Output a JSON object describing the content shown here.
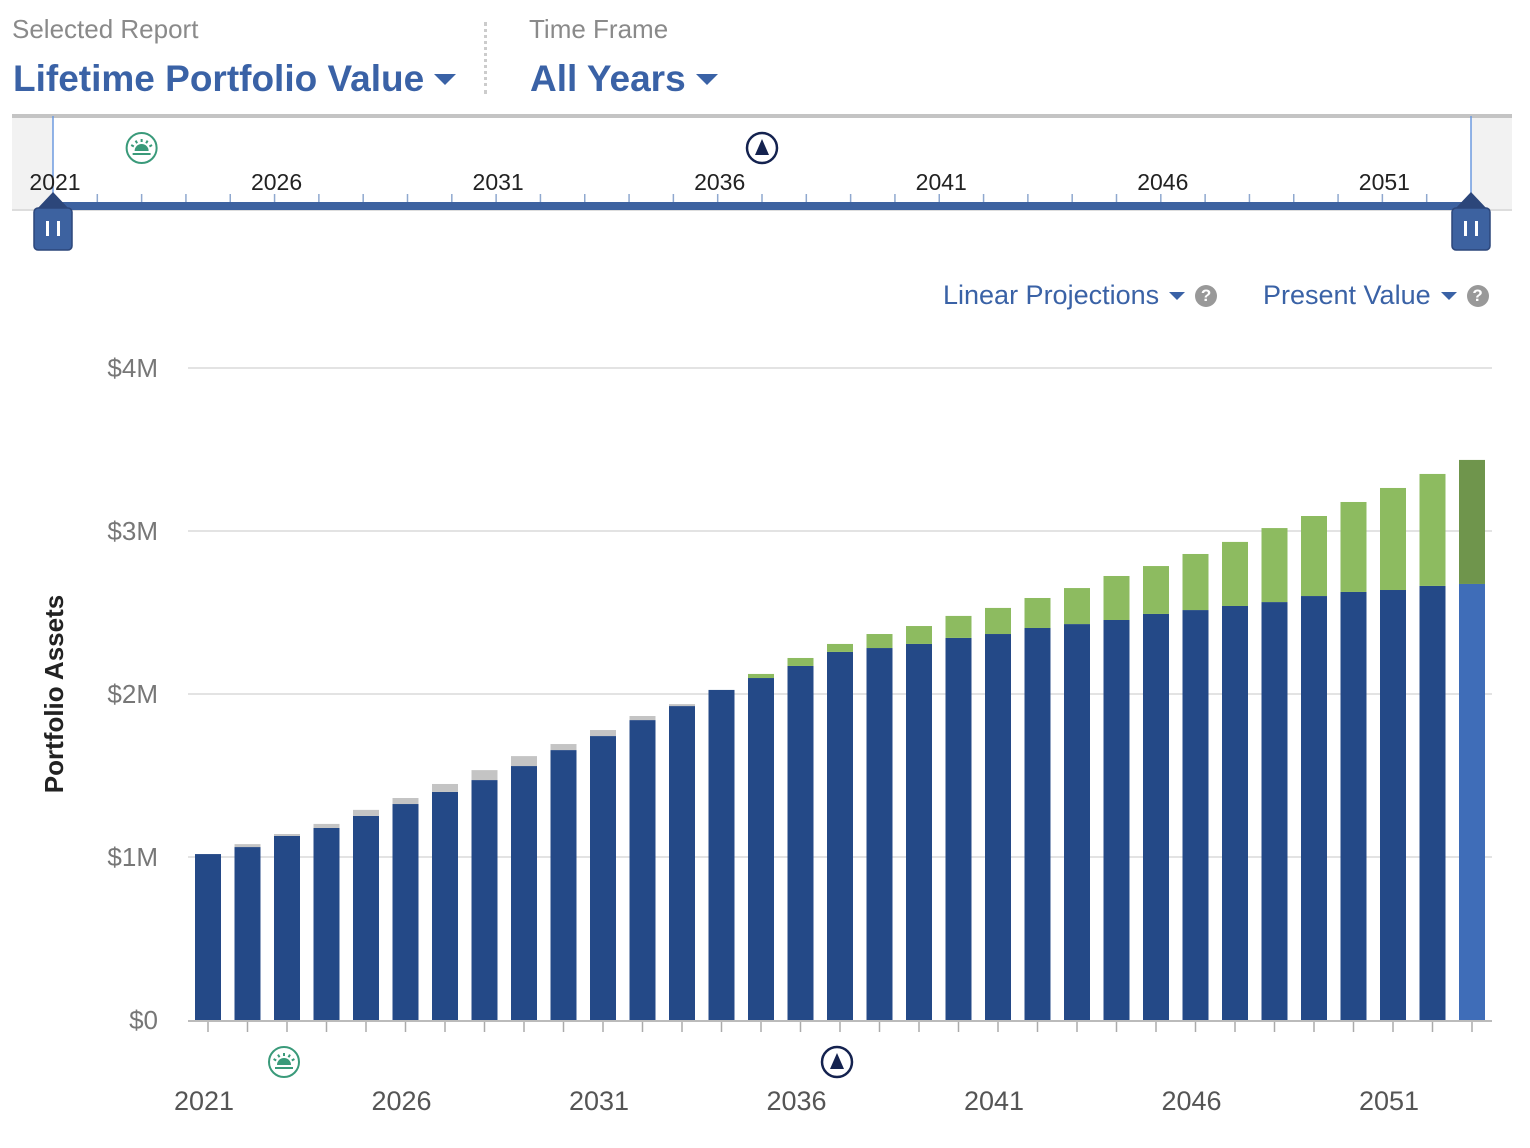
{
  "header": {
    "report_label": "Selected Report",
    "report_value": "Lifetime Portfolio Value",
    "timeframe_label": "Time Frame",
    "timeframe_value": "All Years"
  },
  "slider": {
    "tick_labels": [
      "2021",
      "2026",
      "2031",
      "2036",
      "2041",
      "2046",
      "2051"
    ],
    "range_start": 2021,
    "range_end": 2053,
    "markers": [
      {
        "icon": "sunrise-icon",
        "year": 2023
      },
      {
        "icon": "triangle-milestone-icon",
        "year": 2037
      }
    ]
  },
  "options": {
    "projection": "Linear Projections",
    "value_mode": "Present Value",
    "help_glyph": "?"
  },
  "colors": {
    "blue": "#244987",
    "gray": "#c4c4c4",
    "green": "#8dbb60",
    "highlight_blue": "#3f6db8",
    "highlight_green": "#6f954c",
    "accent": "#3a62a6",
    "sunrise": "#3a9a7a",
    "milestone": "#14224f"
  },
  "chart_data": {
    "type": "bar",
    "stacked": true,
    "ylabel": "Portfolio Assets",
    "xlabel": "",
    "ylim": [
      0,
      4000000
    ],
    "y_ticks": [
      "$0",
      "$1M",
      "$2M",
      "$3M",
      "$4M"
    ],
    "x_tick_labels": [
      "2021",
      "2026",
      "2031",
      "2036",
      "2041",
      "2046",
      "2051"
    ],
    "grid": true,
    "highlighted_category": "2053",
    "categories": [
      "2021",
      "2022",
      "2023",
      "2024",
      "2025",
      "2026",
      "2027",
      "2028",
      "2029",
      "2030",
      "2031",
      "2032",
      "2033",
      "2034",
      "2035",
      "2036",
      "2037",
      "2038",
      "2039",
      "2040",
      "2041",
      "2042",
      "2043",
      "2044",
      "2045",
      "2046",
      "2047",
      "2048",
      "2049",
      "2050",
      "2051",
      "2052",
      "2053"
    ],
    "series": [
      {
        "color": "blue",
        "values": [
          1018000,
          1061000,
          1129000,
          1178000,
          1252000,
          1325000,
          1399000,
          1472000,
          1558000,
          1656000,
          1742000,
          1840000,
          1926000,
          2025000,
          2098000,
          2172000,
          2258000,
          2282000,
          2307000,
          2344000,
          2368000,
          2405000,
          2429000,
          2454000,
          2491000,
          2515000,
          2540000,
          2564000,
          2601000,
          2626000,
          2638000,
          2663000,
          2675000
        ]
      },
      {
        "color": "gray",
        "values": [
          0,
          18000,
          12000,
          25000,
          37000,
          37000,
          49000,
          61000,
          61000,
          37000,
          37000,
          25000,
          12000,
          0,
          0,
          0,
          0,
          0,
          0,
          0,
          0,
          0,
          0,
          0,
          0,
          0,
          0,
          0,
          0,
          0,
          0,
          0,
          0
        ]
      },
      {
        "color": "green",
        "values": [
          0,
          0,
          0,
          0,
          0,
          0,
          0,
          0,
          0,
          0,
          0,
          0,
          0,
          0,
          25000,
          49000,
          49000,
          86000,
          110000,
          135000,
          160000,
          184000,
          221000,
          270000,
          294000,
          344000,
          393000,
          454000,
          491000,
          552000,
          626000,
          687000,
          761000
        ]
      }
    ],
    "markers": [
      {
        "icon": "sunrise-icon",
        "year": 2023
      },
      {
        "icon": "triangle-milestone-icon",
        "year": 2037
      }
    ]
  }
}
